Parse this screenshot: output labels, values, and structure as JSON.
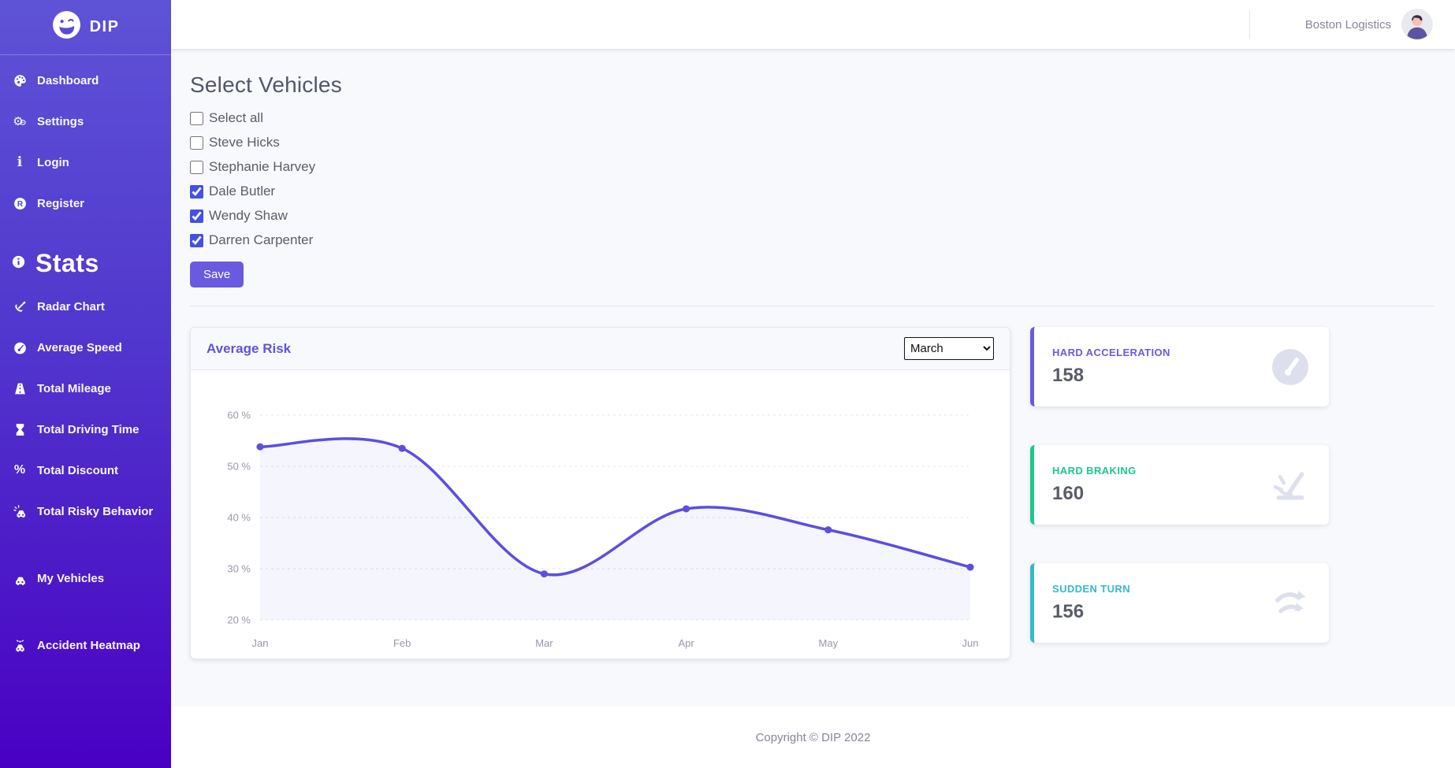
{
  "brand": {
    "name": "DIP"
  },
  "topbar": {
    "account": "Boston Logistics"
  },
  "sidebar": {
    "items": [
      {
        "label": "Dashboard",
        "icon": "dashboard-icon"
      },
      {
        "label": "Settings",
        "icon": "settings-icon"
      },
      {
        "label": "Login",
        "icon": "info-icon"
      },
      {
        "label": "Register",
        "icon": "registered-icon"
      }
    ],
    "section_heading": "Stats",
    "section_icon": "info-circle-icon",
    "stats_items": [
      {
        "label": "Radar Chart",
        "icon": "radar-dish-icon",
        "gap": false
      },
      {
        "label": "Average Speed",
        "icon": "speedometer-icon",
        "gap": false
      },
      {
        "label": "Total Mileage",
        "icon": "road-icon",
        "gap": false
      },
      {
        "label": "Total Driving Time",
        "icon": "hourglass-icon",
        "gap": false
      },
      {
        "label": "Total Discount",
        "icon": "percent-icon",
        "gap": false
      },
      {
        "label": "Total Risky Behavior",
        "icon": "car-crash-icon",
        "gap": false
      },
      {
        "label": "My Vehicles",
        "icon": "car-icon",
        "gap": true
      },
      {
        "label": "Accident Heatmap",
        "icon": "police-car-icon",
        "gap": true
      }
    ]
  },
  "vehicles": {
    "title": "Select Vehicles",
    "options": [
      {
        "label": "Select all",
        "checked": false
      },
      {
        "label": "Steve Hicks",
        "checked": false
      },
      {
        "label": "Stephanie Harvey",
        "checked": false
      },
      {
        "label": "Dale Butler",
        "checked": true
      },
      {
        "label": "Wendy Shaw",
        "checked": true
      },
      {
        "label": "Darren Carpenter",
        "checked": true
      }
    ],
    "save_label": "Save"
  },
  "chart_card": {
    "title": "Average Risk",
    "month_select": {
      "selected": "March"
    }
  },
  "chart_data": {
    "type": "line",
    "title": "Average Risk",
    "x": [
      "Jan",
      "Feb",
      "Mar",
      "Apr",
      "May",
      "Jun"
    ],
    "series": [
      {
        "name": "Average Risk",
        "values": [
          53.8,
          53.5,
          29,
          41.7,
          37.6,
          30.3
        ]
      }
    ],
    "ylim": [
      20,
      60
    ],
    "yticks": [
      20,
      30,
      40,
      50,
      60
    ],
    "ytick_suffix": " %",
    "grid": true,
    "legend": false,
    "line_color": "#5d4ee0",
    "point_color": "#5d4ee0",
    "fill_color": "rgba(93,78,224,0.06)",
    "grid_color": "#e5e5ef",
    "axis_text_color": "#979aa9"
  },
  "stat_cards": [
    {
      "label": "HARD ACCELERATION",
      "value": "158",
      "accent": "#6a5ae0",
      "icon": "gauge-icon"
    },
    {
      "label": "HARD BRAKING",
      "value": "160",
      "accent": "#1cc88a",
      "icon": "skid-icon"
    },
    {
      "label": "SUDDEN TURN",
      "value": "156",
      "accent": "#36b9cc",
      "icon": "turn-arrows-icon"
    }
  ],
  "footer": {
    "copyright": "Copyright © DIP 2022"
  }
}
